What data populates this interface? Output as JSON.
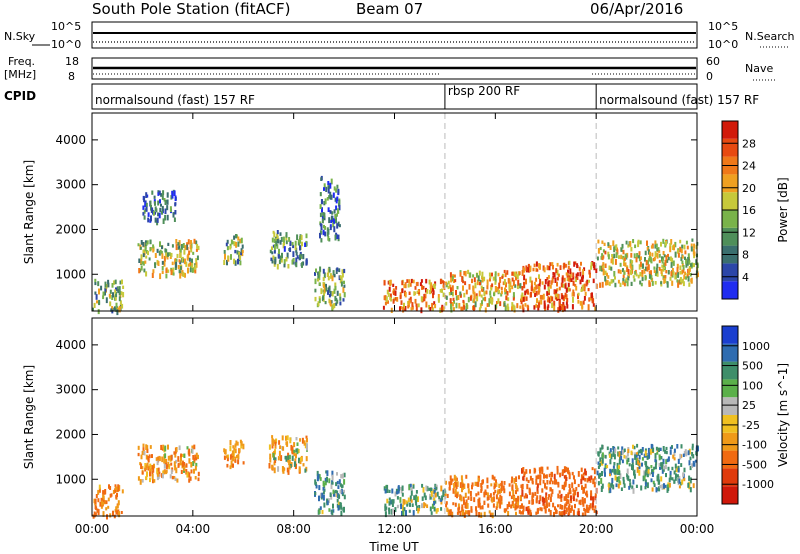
{
  "header": {
    "station": "South Pole Station (fitACF)",
    "beam": "Beam 07",
    "date": "06/Apr/2016"
  },
  "aux_panels": {
    "nsky_label": "N.Sky",
    "nsearch_label": "N.Search",
    "sky_ticks": [
      "10^5",
      "10^0"
    ],
    "sky_ticks_right": [
      "10^5",
      "10^0"
    ],
    "freq_label_1": "Freq.",
    "freq_label_2": "[MHz]",
    "freq_ticks": [
      "18",
      "8"
    ],
    "nave_label": "Nave",
    "nave_ticks": [
      "60",
      "0"
    ],
    "cpid_label": "CPID"
  },
  "cpid_segments": [
    {
      "label": "normalsound (fast) 157 RF",
      "start_h": 0,
      "end_h": 14
    },
    {
      "label": "rbsp 200 RF",
      "start_h": 14,
      "end_h": 20
    },
    {
      "label": "normalsound (fast) 157 RF",
      "start_h": 20,
      "end_h": 24
    }
  ],
  "chart_data": [
    {
      "type": "heatmap",
      "title": "Power",
      "xlabel": "Time UT",
      "ylabel": "Slant Range [km]",
      "xlim": [
        0,
        24
      ],
      "ylim": [
        180,
        4600
      ],
      "x_ticks": [
        "00:00",
        "04:00",
        "08:00",
        "12:00",
        "16:00",
        "20:00",
        "00:00"
      ],
      "y_ticks": [
        1000,
        2000,
        3000,
        4000
      ],
      "colorbar": {
        "label": "Power [dB]",
        "ticks": [
          "4",
          "8",
          "12",
          "16",
          "20",
          "24",
          "28"
        ],
        "colors": [
          "#1f2cf0",
          "#2c46a8",
          "#3a6e6e",
          "#4f8f5a",
          "#79b34a",
          "#c7c93a",
          "#f0a020",
          "#f07818",
          "#e84a10",
          "#d21a0a"
        ]
      },
      "regions": [
        {
          "t_start": 0.0,
          "t_end": 1.2,
          "r_min": 200,
          "r_max": 900,
          "value": 14
        },
        {
          "t_start": 1.8,
          "t_end": 4.2,
          "r_min": 1000,
          "r_max": 1800,
          "value": 16
        },
        {
          "t_start": 2.0,
          "t_end": 3.3,
          "r_min": 2200,
          "r_max": 2900,
          "value": 6
        },
        {
          "t_start": 5.2,
          "t_end": 6.0,
          "r_min": 1300,
          "r_max": 1900,
          "value": 14
        },
        {
          "t_start": 7.0,
          "t_end": 8.5,
          "r_min": 1200,
          "r_max": 2000,
          "value": 11
        },
        {
          "t_start": 8.8,
          "t_end": 10.0,
          "r_min": 300,
          "r_max": 1200,
          "value": 13
        },
        {
          "t_start": 9.0,
          "t_end": 9.8,
          "r_min": 1800,
          "r_max": 3200,
          "value": 8
        },
        {
          "t_start": 11.5,
          "t_end": 14.0,
          "r_min": 250,
          "r_max": 900,
          "value": 24
        },
        {
          "t_start": 14.0,
          "t_end": 17.0,
          "r_min": 250,
          "r_max": 1100,
          "value": 20
        },
        {
          "t_start": 17.0,
          "t_end": 20.0,
          "r_min": 250,
          "r_max": 1300,
          "value": 26
        },
        {
          "t_start": 20.0,
          "t_end": 24.0,
          "r_min": 800,
          "r_max": 1800,
          "value": 18
        }
      ]
    },
    {
      "type": "heatmap",
      "title": "Velocity",
      "xlabel": "Time UT",
      "ylabel": "Slant Range [km]",
      "xlim": [
        0,
        24
      ],
      "ylim": [
        180,
        4600
      ],
      "x_ticks": [
        "00:00",
        "04:00",
        "08:00",
        "12:00",
        "16:00",
        "20:00",
        "00:00"
      ],
      "y_ticks": [
        1000,
        2000,
        3000,
        4000
      ],
      "colorbar": {
        "label": "Velocity [m s^-1]",
        "ticks": [
          "1000",
          "500",
          "100",
          "25",
          "-25",
          "-100",
          "-500",
          "-1000"
        ],
        "colors": [
          "#1b3fd0",
          "#2f6cb0",
          "#3e8e6a",
          "#5bb04a",
          "#b8b8b8",
          "#f0c020",
          "#f09a18",
          "#f06a12",
          "#e03a0c",
          "#d0180a"
        ]
      },
      "regions": [
        {
          "t_start": 0.0,
          "t_end": 1.2,
          "r_min": 200,
          "r_max": 900,
          "value": -300
        },
        {
          "t_start": 1.8,
          "t_end": 4.2,
          "r_min": 1000,
          "r_max": 1800,
          "value": -200
        },
        {
          "t_start": 5.2,
          "t_end": 6.0,
          "r_min": 1300,
          "r_max": 1900,
          "value": -250
        },
        {
          "t_start": 7.0,
          "t_end": 8.5,
          "r_min": 1200,
          "r_max": 2000,
          "value": -150
        },
        {
          "t_start": 8.8,
          "t_end": 10.0,
          "r_min": 300,
          "r_max": 1200,
          "value": 200
        },
        {
          "t_start": 11.5,
          "t_end": 14.0,
          "r_min": 250,
          "r_max": 900,
          "value": 150
        },
        {
          "t_start": 14.0,
          "t_end": 17.0,
          "r_min": 250,
          "r_max": 1100,
          "value": -400
        },
        {
          "t_start": 17.0,
          "t_end": 20.0,
          "r_min": 250,
          "r_max": 1300,
          "value": -600
        },
        {
          "t_start": 20.0,
          "t_end": 24.0,
          "r_min": 800,
          "r_max": 1800,
          "value": 150
        }
      ]
    }
  ]
}
